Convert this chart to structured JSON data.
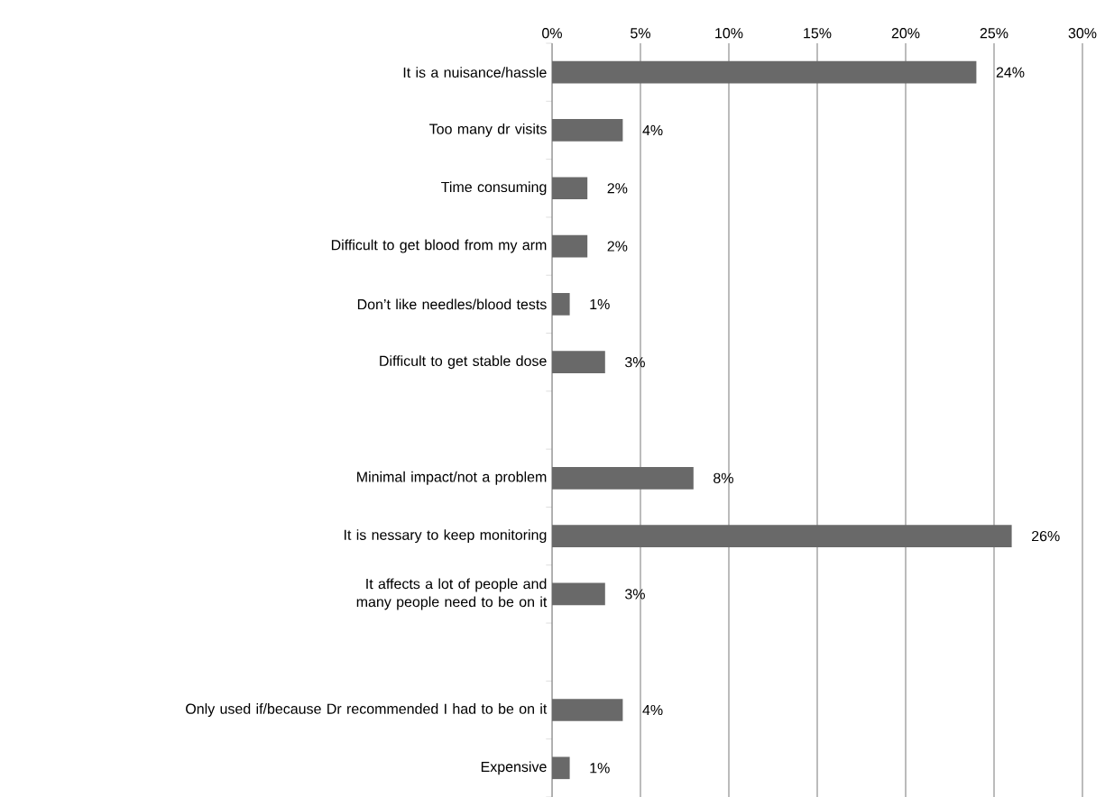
{
  "chart_data": {
    "type": "bar",
    "orientation": "horizontal",
    "categories": [
      "It is a nuisance/hassle",
      "Too many dr visits",
      "Time consuming",
      "Difficult to get blood from my arm",
      "Don’t like needles/blood tests",
      "Difficult to get stable dose",
      null,
      "Minimal impact/not a problem",
      "It is nessary to keep monitoring",
      "It affects a lot of people and many people need to be on it",
      null,
      "Only used if/because Dr recommended I had to be on it",
      "Expensive"
    ],
    "values": [
      24,
      4,
      2,
      2,
      1,
      3,
      null,
      8,
      26,
      3,
      null,
      4,
      1
    ],
    "value_labels": [
      "24%",
      "4%",
      "2%",
      "2%",
      "1%",
      "3%",
      null,
      "8%",
      "26%",
      "3%",
      null,
      "4%",
      "1%"
    ],
    "color": "#696969",
    "xlim": [
      0,
      30
    ],
    "xticks": [
      {
        "value": 0,
        "label": "0%"
      },
      {
        "value": 5,
        "label": "5%"
      },
      {
        "value": 10,
        "label": "10%"
      },
      {
        "value": 15,
        "label": "15%"
      },
      {
        "value": 20,
        "label": "20%"
      },
      {
        "value": 25,
        "label": "25%"
      },
      {
        "value": 30,
        "label": "30%"
      }
    ],
    "grid": "x"
  }
}
